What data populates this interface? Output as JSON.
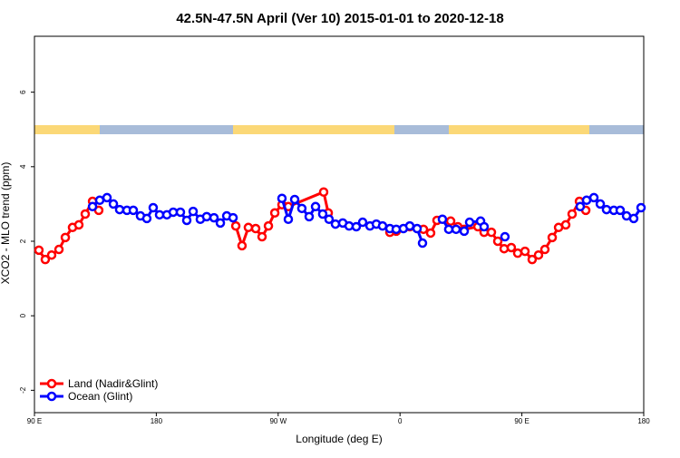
{
  "chart_data": {
    "type": "line",
    "title": "42.5N-47.5N April (Ver 10)   2015-01-01 to 2020-12-18",
    "x_label": "Longitude (deg E)",
    "y_label": "XCO2 - MLO trend (ppm)",
    "xlim": [
      90,
      540
    ],
    "ylim": [
      -2.6,
      7.5
    ],
    "xticks": [
      {
        "value": 90,
        "label": "90 E"
      },
      180,
      {
        "value": 270,
        "label": "90 W"
      },
      {
        "value": 360,
        "label": "0"
      },
      {
        "value": 450,
        "label": "90 E"
      },
      {
        "value": 540,
        "label": "180"
      }
    ],
    "yticks": [
      -2,
      0,
      2,
      4,
      6
    ],
    "legend": "bottom-left",
    "series": [
      {
        "name": "Land (Nadir&Glint)",
        "color": "#ff0000",
        "x": [
          93.3,
          98.0,
          102.7,
          108.1,
          112.8,
          118.1,
          122.8,
          127.5,
          132.9,
          137.5,
          null,
          238.7,
          243.3,
          248.0,
          253.4,
          258.1,
          262.8,
          267.5,
          272.8,
          277.5,
          303.6,
          307.0,
          null,
          352.5,
          357.2,
          367.2,
          377.3,
          382.6,
          387.3,
          397.4,
          402.7,
          407.4,
          417.5,
          422.1,
          427.5,
          432.2,
          436.9,
          442.2,
          446.9,
          452.3,
          457.6,
          462.3,
          467.0,
          472.4,
          477.1,
          482.4,
          487.1,
          492.5,
          497.2
        ],
        "values": [
          1.76,
          1.51,
          1.63,
          1.78,
          2.1,
          2.37,
          2.44,
          2.73,
          3.07,
          2.83,
          null,
          2.41,
          1.88,
          2.37,
          2.34,
          2.12,
          2.41,
          2.76,
          2.98,
          2.93,
          3.32,
          2.76,
          null,
          2.24,
          2.27,
          2.39,
          2.32,
          2.22,
          2.56,
          2.54,
          2.39,
          2.32,
          2.39,
          2.24,
          2.24,
          2.0,
          1.8,
          1.83,
          1.68,
          1.73,
          1.51,
          1.63,
          1.78,
          2.1,
          2.37,
          2.44,
          2.73,
          3.07,
          2.83
        ]
      },
      {
        "name": "Ocean (Glint)",
        "color": "#0000ff",
        "x": [
          132.9,
          138.2,
          143.6,
          148.3,
          152.9,
          158.3,
          163.0,
          168.3,
          173.0,
          177.7,
          182.4,
          187.8,
          192.5,
          197.8,
          202.5,
          207.2,
          212.5,
          217.2,
          222.6,
          227.3,
          232.0,
          236.7,
          null,
          272.8,
          277.5,
          282.2,
          287.5,
          292.9,
          297.6,
          302.9,
          307.6,
          312.3,
          317.7,
          322.4,
          327.7,
          332.4,
          337.8,
          342.5,
          347.1,
          352.5,
          357.2,
          362.5,
          367.2,
          372.6,
          376.6,
          null,
          391.3,
          396.0,
          401.4,
          407.4,
          411.4,
          419.5,
          422.1,
          null,
          437.5,
          null,
          493.1,
          497.8,
          503.2,
          507.9,
          512.5,
          517.9,
          522.6,
          527.3,
          532.6,
          538.0
        ],
        "values": [
          2.93,
          3.1,
          3.17,
          3.0,
          2.85,
          2.83,
          2.83,
          2.68,
          2.61,
          2.9,
          2.71,
          2.71,
          2.78,
          2.78,
          2.56,
          2.8,
          2.59,
          2.66,
          2.63,
          2.49,
          2.68,
          2.63,
          null,
          3.15,
          2.59,
          3.12,
          2.88,
          2.66,
          2.93,
          2.73,
          2.59,
          2.46,
          2.49,
          2.41,
          2.39,
          2.51,
          2.41,
          2.46,
          2.41,
          2.34,
          2.32,
          2.34,
          2.41,
          2.34,
          1.95,
          null,
          2.59,
          2.32,
          2.32,
          2.27,
          2.51,
          2.54,
          2.39,
          null,
          2.12,
          null,
          2.93,
          3.1,
          3.17,
          3.0,
          2.85,
          2.83,
          2.83,
          2.68,
          2.61,
          2.9
        ]
      }
    ]
  }
}
